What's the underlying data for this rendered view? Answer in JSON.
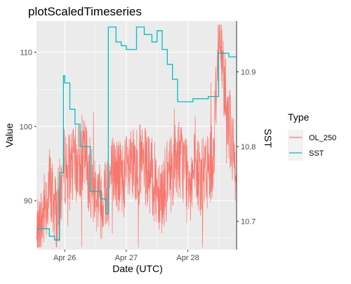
{
  "chart_data": {
    "type": "line",
    "title": "plotScaledTimeseries",
    "xlabel": "Date (UTC)",
    "ylabel": "Value",
    "y2label": "SST",
    "x_ticks": [
      "Apr 26",
      "Apr 27",
      "Apr 28"
    ],
    "y_ticks": [
      90,
      100,
      110
    ],
    "y2_ticks": [
      10.7,
      10.8,
      10.9
    ],
    "xlim": [
      "2022-04-25T13:00",
      "2022-04-28T19:00"
    ],
    "ylim": [
      83.4,
      114.2
    ],
    "y2lim": [
      10.662,
      10.968
    ],
    "grid": true,
    "legend": {
      "title": "Type",
      "position": "right"
    },
    "series": [
      {
        "name": "OL_250",
        "color": "#F8766D",
        "axis": "left",
        "x": [
          "2022-04-25T13:00",
          "2022-04-25T18:00",
          "2022-04-25T21:00",
          "2022-04-26T00:00",
          "2022-04-26T02:00",
          "2022-04-26T08:00",
          "2022-04-26T10:00",
          "2022-04-26T14:00",
          "2022-04-26T19:00",
          "2022-04-26T22:00",
          "2022-04-27T06:00",
          "2022-04-27T10:00",
          "2022-04-27T14:00",
          "2022-04-27T20:00",
          "2022-04-28T00:00",
          "2022-04-28T06:00",
          "2022-04-28T10:00",
          "2022-04-28T12:00",
          "2022-04-28T19:00"
        ],
        "values": [
          84,
          92,
          88,
          95,
          94,
          96,
          93,
          90,
          94,
          93,
          95,
          93,
          91,
          96,
          94,
          93,
          96,
          113,
          92
        ]
      },
      {
        "name": "SST",
        "color": "#00BFC4",
        "axis": "right",
        "x": [
          "2022-04-25T13:00",
          "2022-04-25T18:00",
          "2022-04-25T20:00",
          "2022-04-25T22:00",
          "2022-04-25T23:30",
          "2022-04-26T00:00",
          "2022-04-26T02:00",
          "2022-04-26T04:00",
          "2022-04-26T06:00",
          "2022-04-26T10:00",
          "2022-04-26T14:00",
          "2022-04-26T16:00",
          "2022-04-26T17:00",
          "2022-04-26T20:00",
          "2022-04-26T22:00",
          "2022-04-27T00:00",
          "2022-04-27T04:00",
          "2022-04-27T07:00",
          "2022-04-27T10:00",
          "2022-04-27T12:00",
          "2022-04-27T14:00",
          "2022-04-27T16:00",
          "2022-04-27T18:00",
          "2022-04-27T20:00",
          "2022-04-28T00:00",
          "2022-04-28T02:00",
          "2022-04-28T08:00",
          "2022-04-28T12:00",
          "2022-04-28T16:00",
          "2022-04-28T19:00"
        ],
        "values": [
          10.69,
          10.68,
          10.675,
          10.765,
          10.895,
          10.885,
          10.85,
          10.83,
          10.8,
          10.74,
          10.73,
          10.71,
          10.96,
          10.94,
          10.935,
          10.93,
          10.96,
          10.95,
          10.94,
          10.955,
          10.93,
          10.91,
          10.89,
          10.86,
          10.86,
          10.864,
          10.867,
          10.925,
          10.92,
          10.92
        ]
      }
    ]
  }
}
